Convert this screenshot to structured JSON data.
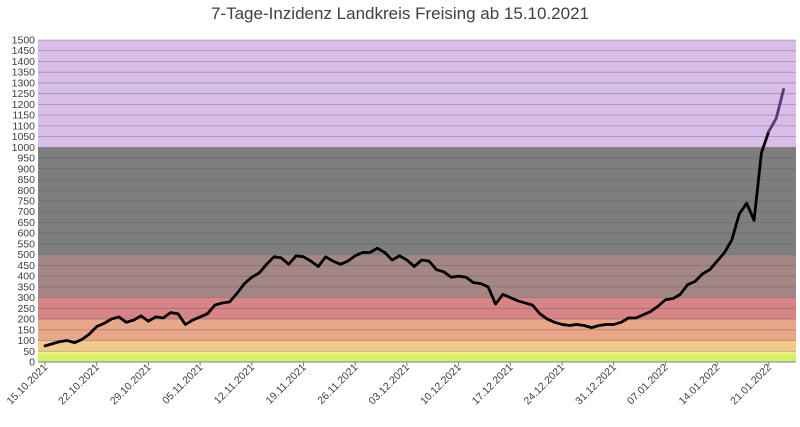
{
  "chart_data": {
    "type": "line",
    "title": "7-Tage-Inzidenz Landkreis Freising ab 15.10.2021",
    "xlabel": "",
    "ylabel": "",
    "ylim": [
      0,
      1500
    ],
    "y_ticks": [
      0,
      50,
      100,
      150,
      200,
      250,
      300,
      350,
      400,
      450,
      500,
      550,
      600,
      650,
      700,
      750,
      800,
      850,
      900,
      950,
      1000,
      1050,
      1100,
      1150,
      1200,
      1250,
      1300,
      1350,
      1400,
      1450,
      1500
    ],
    "x_tick_labels": [
      "15.10.2021",
      "22.10.2021",
      "29.10.2021",
      "05.11.2021",
      "12.11.2021",
      "19.11.2021",
      "26.11.2021",
      "03.12.2021",
      "10.12.2021",
      "17.12.2021",
      "24.12.2021",
      "31.12.2021",
      "07.01.2022",
      "14.01.2022",
      "21.01.2022"
    ],
    "grid": true,
    "legend": "none",
    "bands": [
      {
        "from": 0,
        "to": 35,
        "color": "#d3f26a"
      },
      {
        "from": 35,
        "to": 50,
        "color": "#f1ec7c"
      },
      {
        "from": 50,
        "to": 100,
        "color": "#f4c98c"
      },
      {
        "from": 100,
        "to": 200,
        "color": "#eaa688"
      },
      {
        "from": 200,
        "to": 300,
        "color": "#d88486"
      },
      {
        "from": 300,
        "to": 500,
        "color": "#a48685"
      },
      {
        "from": 500,
        "to": 1000,
        "color": "#7e7e7e"
      },
      {
        "from": 1000,
        "to": 1500,
        "color": "#d8bde8"
      }
    ],
    "line_color": "#000000",
    "line_color_above_1000": "#5b3a78",
    "series": [
      {
        "x": [
          "15.10.2021",
          "16.10.2021",
          "17.10.2021",
          "18.10.2021",
          "19.10.2021",
          "20.10.2021",
          "21.10.2021",
          "22.10.2021",
          "23.10.2021",
          "24.10.2021",
          "25.10.2021",
          "26.10.2021",
          "27.10.2021",
          "28.10.2021",
          "29.10.2021",
          "30.10.2021",
          "31.10.2021",
          "01.11.2021",
          "02.11.2021",
          "03.11.2021",
          "04.11.2021",
          "05.11.2021",
          "06.11.2021",
          "07.11.2021",
          "08.11.2021",
          "09.11.2021",
          "10.11.2021",
          "11.11.2021",
          "12.11.2021",
          "13.11.2021",
          "14.11.2021",
          "15.11.2021",
          "16.11.2021",
          "17.11.2021",
          "18.11.2021",
          "19.11.2021",
          "20.11.2021",
          "21.11.2021",
          "22.11.2021",
          "23.11.2021",
          "24.11.2021",
          "25.11.2021",
          "26.11.2021",
          "27.11.2021",
          "28.11.2021",
          "29.11.2021",
          "30.11.2021",
          "01.12.2021",
          "02.12.2021",
          "03.12.2021",
          "04.12.2021",
          "05.12.2021",
          "06.12.2021",
          "07.12.2021",
          "08.12.2021",
          "09.12.2021",
          "10.12.2021",
          "11.12.2021",
          "12.12.2021",
          "13.12.2021",
          "14.12.2021",
          "15.12.2021",
          "16.12.2021",
          "17.12.2021",
          "18.12.2021",
          "19.12.2021",
          "20.12.2021",
          "21.12.2021",
          "22.12.2021",
          "23.12.2021",
          "24.12.2021",
          "25.12.2021",
          "26.12.2021",
          "27.12.2021",
          "28.12.2021",
          "29.12.2021",
          "30.12.2021",
          "31.12.2021",
          "01.01.2022",
          "02.01.2022",
          "03.01.2022",
          "04.01.2022",
          "05.01.2022",
          "06.01.2022",
          "07.01.2022",
          "08.01.2022",
          "09.01.2022",
          "10.01.2022",
          "11.01.2022",
          "12.01.2022",
          "13.01.2022",
          "14.01.2022",
          "15.01.2022",
          "16.01.2022",
          "17.01.2022",
          "18.01.2022",
          "19.01.2022",
          "20.01.2022",
          "21.01.2022",
          "22.01.2022",
          "23.01.2022",
          "24.01.2022"
        ],
        "values": [
          75,
          85,
          95,
          100,
          90,
          105,
          130,
          165,
          180,
          200,
          210,
          185,
          195,
          215,
          190,
          210,
          205,
          230,
          225,
          175,
          195,
          210,
          225,
          265,
          275,
          280,
          320,
          365,
          395,
          415,
          455,
          490,
          485,
          455,
          495,
          490,
          470,
          445,
          490,
          470,
          455,
          470,
          495,
          510,
          510,
          530,
          510,
          475,
          495,
          475,
          445,
          475,
          470,
          430,
          420,
          395,
          400,
          395,
          370,
          365,
          350,
          270,
          315,
          300,
          285,
          275,
          265,
          225,
          200,
          185,
          175,
          170,
          175,
          170,
          160,
          170,
          175,
          175,
          185,
          205,
          205,
          220,
          235,
          260,
          290,
          295,
          315,
          360,
          375,
          410,
          430,
          470,
          510,
          570,
          690,
          740,
          660,
          975,
          1075,
          1135,
          1270,
          null
        ]
      }
    ]
  }
}
